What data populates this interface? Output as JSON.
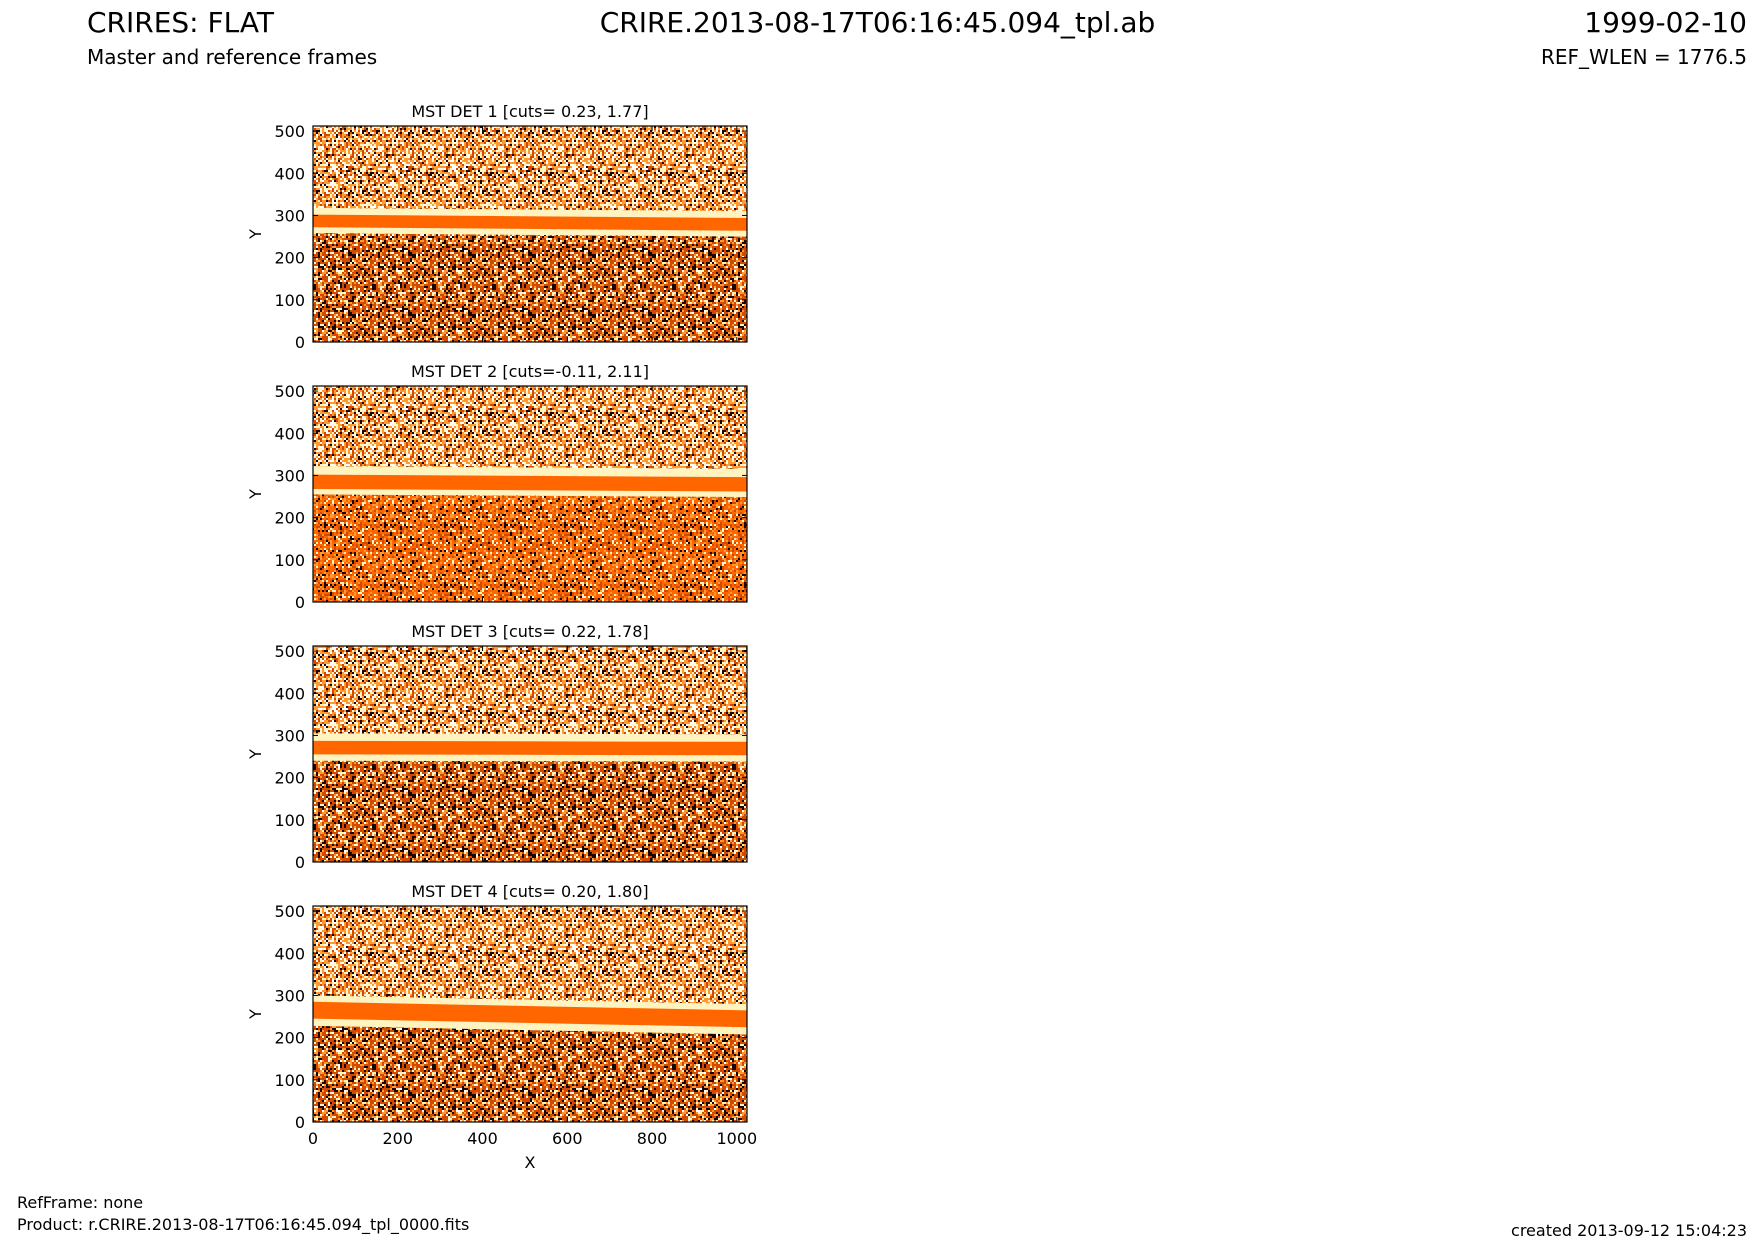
{
  "header": {
    "title_left": "CRIRES: FLAT",
    "subtitle": "Master and reference frames",
    "title_center": "CRIRE.2013-08-17T06:16:45.094_tpl.ab",
    "date": "1999-02-10",
    "ref_wlen": "REF_WLEN = 1776.5"
  },
  "footer": {
    "refframe": "RefFrame: none",
    "product": "Product: r.CRIRE.2013-08-17T06:16:45.094_tpl_0000.fits",
    "created": "created 2013-09-12 15:04:23"
  },
  "colors": {
    "stripe": "#ff6600",
    "dark": "#1a0500",
    "mid": "#d24a00",
    "light": "#ff9a33",
    "bright": "#fff3c0",
    "white": "#ffffff"
  },
  "chart_data": [
    {
      "type": "heatmap",
      "title": "MST DET 1 [cuts= 0.23, 1.77]",
      "xlabel": "",
      "ylabel": "Y",
      "xlim": [
        0,
        1024
      ],
      "ylim": [
        0,
        512
      ],
      "xticks": [],
      "yticks": [
        0,
        100,
        200,
        300,
        400,
        500
      ],
      "stripe_y": [
        272,
        302
      ],
      "halo_y": [
        258,
        318
      ],
      "stripe_slope": -0.008
    },
    {
      "type": "heatmap",
      "title": "MST DET 2 [cuts=-0.11, 2.11]",
      "xlabel": "",
      "ylabel": "Y",
      "xlim": [
        0,
        1024
      ],
      "ylim": [
        0,
        512
      ],
      "xticks": [],
      "yticks": [
        0,
        100,
        200,
        300,
        400,
        500
      ],
      "stripe_y": [
        268,
        302
      ],
      "halo_y": [
        255,
        322
      ],
      "stripe_slope": -0.006
    },
    {
      "type": "heatmap",
      "title": "MST DET 3 [cuts= 0.22, 1.78]",
      "xlabel": "",
      "ylabel": "Y",
      "xlim": [
        0,
        1024
      ],
      "ylim": [
        0,
        512
      ],
      "xticks": [],
      "yticks": [
        0,
        100,
        200,
        300,
        400,
        500
      ],
      "stripe_y": [
        255,
        287
      ],
      "halo_y": [
        240,
        305
      ],
      "stripe_slope": -0.002
    },
    {
      "type": "heatmap",
      "title": "MST DET 4 [cuts= 0.20, 1.80]",
      "xlabel": "X",
      "ylabel": "Y",
      "xlim": [
        0,
        1024
      ],
      "ylim": [
        0,
        512
      ],
      "xticks": [
        0,
        200,
        400,
        600,
        800,
        1000
      ],
      "yticks": [
        0,
        100,
        200,
        300,
        400,
        500
      ],
      "stripe_y": [
        245,
        285
      ],
      "halo_y": [
        228,
        300
      ],
      "stripe_slope": -0.02
    }
  ]
}
